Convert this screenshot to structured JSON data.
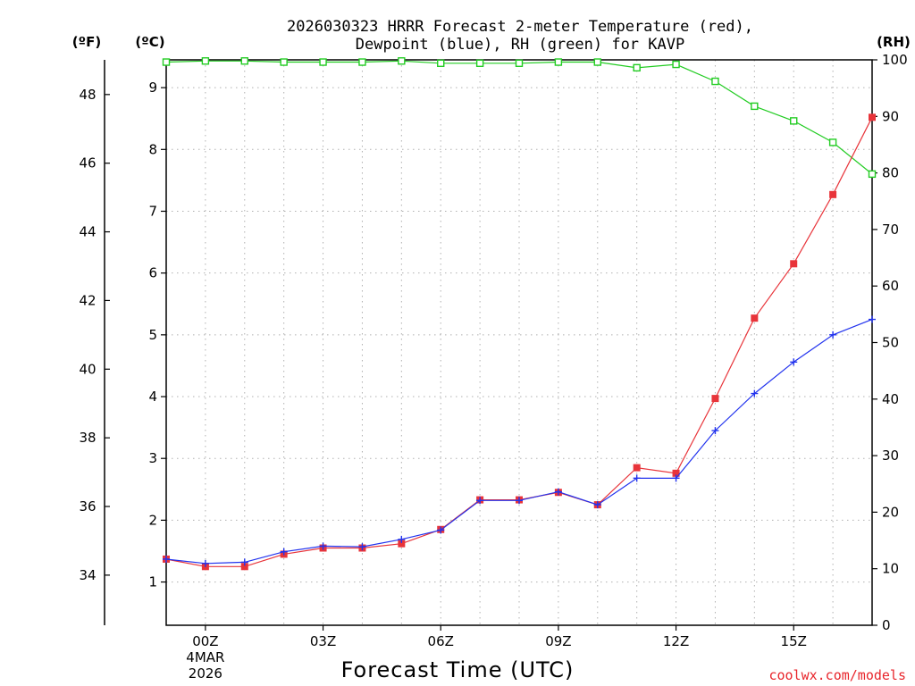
{
  "chart_data": {
    "type": "line",
    "title_line1": "2026030323 HRRR Forecast 2-meter Temperature (red),",
    "title_line2": "Dewpoint (blue), RH (green) for KAVP",
    "xlabel": "Forecast Time (UTC)",
    "credit": "coolwx.com/models",
    "unit_f": "(ºF)",
    "unit_c": "(ºC)",
    "unit_rh": "(RH)",
    "x_hours": [
      -1,
      0,
      1,
      2,
      3,
      4,
      5,
      6,
      7,
      8,
      9,
      10,
      11,
      12,
      13,
      14,
      15,
      16,
      17
    ],
    "xlim": [
      -1,
      17
    ],
    "x_ticks": [
      {
        "hour": 0,
        "label": "00Z",
        "date1": "4MAR",
        "date2": "2026"
      },
      {
        "hour": 3,
        "label": "03Z"
      },
      {
        "hour": 6,
        "label": "06Z"
      },
      {
        "hour": 9,
        "label": "09Z"
      },
      {
        "hour": 12,
        "label": "12Z"
      },
      {
        "hour": 15,
        "label": "15Z"
      }
    ],
    "y_c_range": [
      0.3,
      9.45
    ],
    "y_c_ticks": [
      "1",
      "2",
      "3",
      "4",
      "5",
      "6",
      "7",
      "8",
      "9"
    ],
    "y_f_ticks": [
      "34",
      "36",
      "38",
      "40",
      "42",
      "44",
      "46",
      "48"
    ],
    "y_rh_range": [
      0,
      100
    ],
    "y_rh_ticks": [
      "0",
      "10",
      "20",
      "30",
      "40",
      "50",
      "60",
      "70",
      "80",
      "90",
      "100"
    ],
    "series": [
      {
        "name": "Temperature",
        "unit": "C",
        "color": "#e8343a",
        "marker": "filled-square",
        "values": [
          1.37,
          1.25,
          1.25,
          1.45,
          1.55,
          1.55,
          1.62,
          1.85,
          2.33,
          2.33,
          2.45,
          2.25,
          2.85,
          2.76,
          3.97,
          5.27,
          6.15,
          7.27,
          8.52
        ]
      },
      {
        "name": "Dewpoint",
        "unit": "C",
        "color": "#2233ee",
        "marker": "plus",
        "values": [
          1.37,
          1.3,
          1.32,
          1.49,
          1.58,
          1.57,
          1.69,
          1.84,
          2.32,
          2.32,
          2.46,
          2.25,
          2.68,
          2.68,
          3.45,
          4.05,
          4.56,
          5.0,
          5.25
        ]
      },
      {
        "name": "RH",
        "unit": "%",
        "color": "#22cc22",
        "marker": "open-square",
        "values": [
          99.6,
          99.8,
          99.8,
          99.6,
          99.6,
          99.6,
          99.8,
          99.4,
          99.4,
          99.4,
          99.6,
          99.6,
          98.6,
          99.2,
          96.2,
          91.8,
          89.2,
          85.4,
          79.8
        ]
      }
    ]
  }
}
